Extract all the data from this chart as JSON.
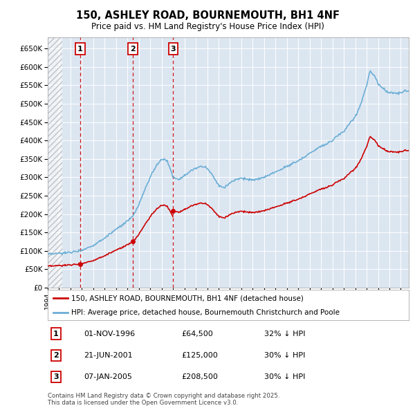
{
  "title": "150, ASHLEY ROAD, BOURNEMOUTH, BH1 4NF",
  "subtitle": "Price paid vs. HM Land Registry's House Price Index (HPI)",
  "hpi_color": "#6baed6",
  "price_color": "#cc0000",
  "dashed_line_color": "#cc0000",
  "background_color": "#ffffff",
  "plot_bg_color": "#dce6f1",
  "grid_color": "#ffffff",
  "ylim": [
    0,
    680000
  ],
  "yticks": [
    0,
    50000,
    100000,
    150000,
    200000,
    250000,
    300000,
    350000,
    400000,
    450000,
    500000,
    550000,
    600000,
    650000
  ],
  "ytick_labels": [
    "£0",
    "£50K",
    "£100K",
    "£150K",
    "£200K",
    "£250K",
    "£300K",
    "£350K",
    "£400K",
    "£450K",
    "£500K",
    "£550K",
    "£600K",
    "£650K"
  ],
  "xlim_start": 1994.0,
  "xlim_end": 2025.7,
  "hatch_end": 1995.3,
  "purchases": [
    {
      "label": "1",
      "date_num": 1996.833,
      "price": 64500,
      "date_str": "01-NOV-1996",
      "hpi_pct": "32% ↓ HPI"
    },
    {
      "label": "2",
      "date_num": 2001.472,
      "price": 125000,
      "date_str": "21-JUN-2001",
      "hpi_pct": "30% ↓ HPI"
    },
    {
      "label": "3",
      "date_num": 2005.019,
      "price": 208500,
      "date_str": "07-JAN-2005",
      "hpi_pct": "30% ↓ HPI"
    }
  ],
  "legend_entries": [
    "150, ASHLEY ROAD, BOURNEMOUTH, BH1 4NF (detached house)",
    "HPI: Average price, detached house, Bournemouth Christchurch and Poole"
  ],
  "footer": "Contains HM Land Registry data © Crown copyright and database right 2025.\nThis data is licensed under the Open Government Licence v3.0.",
  "table_rows": [
    [
      "1",
      "01-NOV-1996",
      "£64,500",
      "32% ↓ HPI"
    ],
    [
      "2",
      "21-JUN-2001",
      "£125,000",
      "30% ↓ HPI"
    ],
    [
      "3",
      "07-JAN-2005",
      "£208,500",
      "30% ↓ HPI"
    ]
  ]
}
